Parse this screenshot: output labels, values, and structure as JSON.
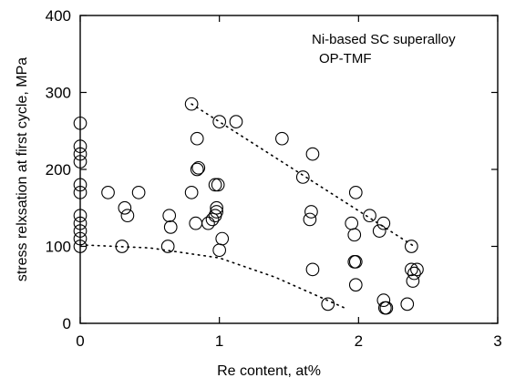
{
  "chart_data": {
    "type": "scatter",
    "title": "",
    "xlabel": "Re content, at%",
    "ylabel": "stress relxsation at first cycle, MPa",
    "xlim": [
      0,
      3
    ],
    "ylim": [
      0,
      400
    ],
    "xticks": [
      0,
      1,
      2,
      3
    ],
    "yticks": [
      0,
      100,
      200,
      300,
      400
    ],
    "grid": false,
    "legend": "none",
    "annotations": [
      "Ni-based SC superalloy",
      "OP-TMF"
    ],
    "marker": "open-circle",
    "series": [
      {
        "points": [
          [
            0,
            260
          ],
          [
            0,
            230
          ],
          [
            0,
            220
          ],
          [
            0,
            210
          ],
          [
            0,
            180
          ],
          [
            0,
            170
          ],
          [
            0,
            140
          ],
          [
            0,
            130
          ],
          [
            0,
            120
          ],
          [
            0,
            110
          ],
          [
            0,
            100
          ],
          [
            0.2,
            170
          ],
          [
            0.3,
            100
          ],
          [
            0.32,
            150
          ],
          [
            0.34,
            140
          ],
          [
            0.42,
            170
          ],
          [
            0.63,
            100
          ],
          [
            0.64,
            140
          ],
          [
            0.65,
            125
          ],
          [
            0.8,
            285
          ],
          [
            0.8,
            170
          ],
          [
            0.83,
            130
          ],
          [
            0.84,
            240
          ],
          [
            0.84,
            200
          ],
          [
            0.85,
            202
          ],
          [
            0.92,
            130
          ],
          [
            0.95,
            135
          ],
          [
            0.97,
            180
          ],
          [
            0.97,
            140
          ],
          [
            0.98,
            150
          ],
          [
            0.98,
            145
          ],
          [
            0.99,
            180
          ],
          [
            1.0,
            95
          ],
          [
            1.0,
            262
          ],
          [
            1.02,
            110
          ],
          [
            1.12,
            262
          ],
          [
            1.45,
            240
          ],
          [
            1.6,
            190
          ],
          [
            1.65,
            135
          ],
          [
            1.66,
            145
          ],
          [
            1.67,
            220
          ],
          [
            1.67,
            70
          ],
          [
            1.78,
            25
          ],
          [
            1.95,
            130
          ],
          [
            1.97,
            115
          ],
          [
            1.97,
            80
          ],
          [
            1.98,
            80
          ],
          [
            1.98,
            170
          ],
          [
            1.98,
            50
          ],
          [
            2.08,
            140
          ],
          [
            2.15,
            120
          ],
          [
            2.18,
            130
          ],
          [
            2.18,
            30
          ],
          [
            2.19,
            20
          ],
          [
            2.2,
            20
          ],
          [
            2.35,
            25
          ],
          [
            2.38,
            70
          ],
          [
            2.38,
            100
          ],
          [
            2.39,
            55
          ],
          [
            2.4,
            65
          ],
          [
            2.42,
            70
          ]
        ]
      }
    ],
    "trend_lines": [
      {
        "style": "dotted",
        "x": [
          0.8,
          2.4
        ],
        "y": [
          285,
          100
        ]
      },
      {
        "style": "dotted",
        "x": [
          0,
          0.5,
          1.0,
          1.4,
          1.9
        ],
        "y": [
          102,
          98,
          85,
          60,
          20
        ]
      }
    ]
  }
}
